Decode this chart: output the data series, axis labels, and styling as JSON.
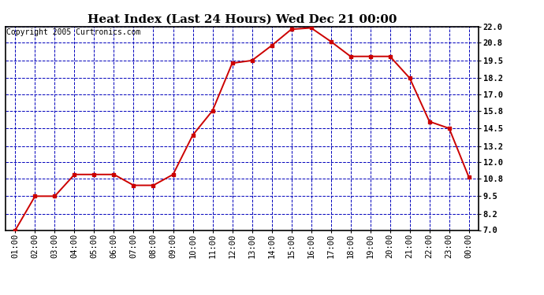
{
  "title": "Heat Index (Last 24 Hours) Wed Dec 21 00:00",
  "copyright": "Copyright 2005 Curtronics.com",
  "x_labels": [
    "01:00",
    "02:00",
    "03:00",
    "04:00",
    "05:00",
    "06:00",
    "07:00",
    "08:00",
    "09:00",
    "10:00",
    "11:00",
    "12:00",
    "13:00",
    "14:00",
    "15:00",
    "16:00",
    "17:00",
    "18:00",
    "19:00",
    "20:00",
    "21:00",
    "22:00",
    "23:00",
    "00:00"
  ],
  "y_values": [
    7.0,
    9.5,
    9.5,
    11.1,
    11.1,
    11.1,
    10.3,
    10.3,
    11.1,
    14.0,
    15.8,
    19.3,
    19.5,
    20.6,
    21.8,
    21.9,
    20.9,
    19.8,
    19.8,
    19.8,
    18.2,
    15.0,
    14.5,
    10.9
  ],
  "ylim": [
    7.0,
    22.0
  ],
  "yticks": [
    7.0,
    8.2,
    9.5,
    10.8,
    12.0,
    13.2,
    14.5,
    15.8,
    17.0,
    18.2,
    19.5,
    20.8,
    22.0
  ],
  "line_color": "#cc0000",
  "marker_color": "#cc0000",
  "bg_color": "#ffffff",
  "plot_bg": "#ffffff",
  "grid_color": "#0000bb",
  "border_color": "#000000",
  "title_fontsize": 11,
  "copyright_fontsize": 7,
  "tick_fontsize": 7.5,
  "fig_width": 6.9,
  "fig_height": 3.75,
  "dpi": 100
}
